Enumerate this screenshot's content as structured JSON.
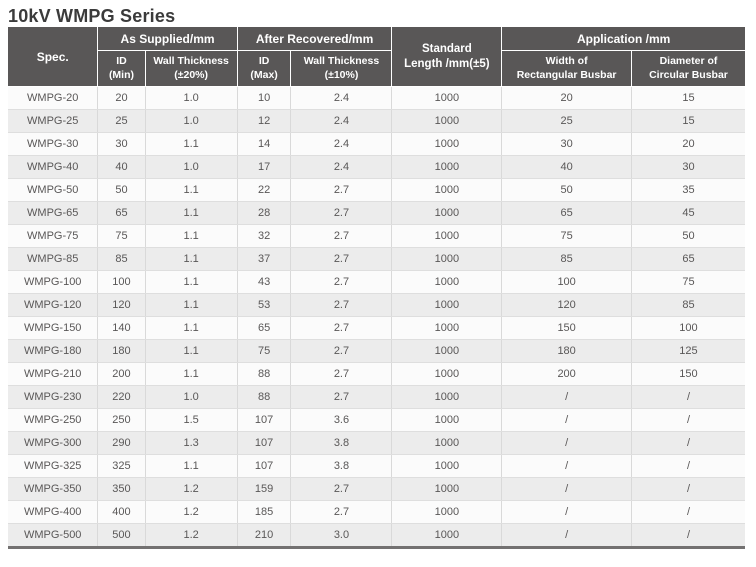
{
  "title": "10kV WMPG Series",
  "colors": {
    "header_bg": "#595757",
    "header_text": "#ffffff",
    "body_text": "#595757",
    "row_light": "#fbfbfb",
    "row_dark": "#ececec",
    "grid_line": "#d9d9d9",
    "bottom_border": "#737171",
    "title_color": "#3b3b3b"
  },
  "table": {
    "header": {
      "spec": "Spec.",
      "as_supplied": "As Supplied/mm",
      "after_recovered": "After Recovered/mm",
      "standard_length": {
        "line1": "Standard",
        "line2": "Length /mm(±5)"
      },
      "application": "Application /mm",
      "id_min": {
        "line1": "ID",
        "line2": "(Min)"
      },
      "wall_thickness_20": {
        "line1": "Wall Thickness",
        "line2": "(±20%)"
      },
      "id_max": {
        "line1": "ID",
        "line2": "(Max)"
      },
      "wall_thickness_10": {
        "line1": "Wall Thickness",
        "line2": "(±10%)"
      },
      "width_rect_busbar": {
        "line1": "Width of",
        "line2": "Rectangular Busbar"
      },
      "diameter_circ_busbar": {
        "line1": "Diameter of",
        "line2": "Circular Busbar"
      }
    },
    "column_names": [
      "spec",
      "id_min",
      "wall_thickness_20",
      "id_max",
      "wall_thickness_10",
      "standard_length",
      "width_rect_busbar",
      "diameter_circ_busbar"
    ],
    "rows": [
      [
        "WMPG-20",
        "20",
        "1.0",
        "10",
        "2.4",
        "1000",
        "20",
        "15"
      ],
      [
        "WMPG-25",
        "25",
        "1.0",
        "12",
        "2.4",
        "1000",
        "25",
        "15"
      ],
      [
        "WMPG-30",
        "30",
        "1.1",
        "14",
        "2.4",
        "1000",
        "30",
        "20"
      ],
      [
        "WMPG-40",
        "40",
        "1.0",
        "17",
        "2.4",
        "1000",
        "40",
        "30"
      ],
      [
        "WMPG-50",
        "50",
        "1.1",
        "22",
        "2.7",
        "1000",
        "50",
        "35"
      ],
      [
        "WMPG-65",
        "65",
        "1.1",
        "28",
        "2.7",
        "1000",
        "65",
        "45"
      ],
      [
        "WMPG-75",
        "75",
        "1.1",
        "32",
        "2.7",
        "1000",
        "75",
        "50"
      ],
      [
        "WMPG-85",
        "85",
        "1.1",
        "37",
        "2.7",
        "1000",
        "85",
        "65"
      ],
      [
        "WMPG-100",
        "100",
        "1.1",
        "43",
        "2.7",
        "1000",
        "100",
        "75"
      ],
      [
        "WMPG-120",
        "120",
        "1.1",
        "53",
        "2.7",
        "1000",
        "120",
        "85"
      ],
      [
        "WMPG-150",
        "140",
        "1.1",
        "65",
        "2.7",
        "1000",
        "150",
        "100"
      ],
      [
        "WMPG-180",
        "180",
        "1.1",
        "75",
        "2.7",
        "1000",
        "180",
        "125"
      ],
      [
        "WMPG-210",
        "200",
        "1.1",
        "88",
        "2.7",
        "1000",
        "200",
        "150"
      ],
      [
        "WMPG-230",
        "220",
        "1.0",
        "88",
        "2.7",
        "1000",
        "/",
        "/"
      ],
      [
        "WMPG-250",
        "250",
        "1.5",
        "107",
        "3.6",
        "1000",
        "/",
        "/"
      ],
      [
        "WMPG-300",
        "290",
        "1.3",
        "107",
        "3.8",
        "1000",
        "/",
        "/"
      ],
      [
        "WMPG-325",
        "325",
        "1.1",
        "107",
        "3.8",
        "1000",
        "/",
        "/"
      ],
      [
        "WMPG-350",
        "350",
        "1.2",
        "159",
        "2.7",
        "1000",
        "/",
        "/"
      ],
      [
        "WMPG-400",
        "400",
        "1.2",
        "185",
        "2.7",
        "1000",
        "/",
        "/"
      ],
      [
        "WMPG-500",
        "500",
        "1.2",
        "210",
        "3.0",
        "1000",
        "/",
        "/"
      ]
    ]
  }
}
